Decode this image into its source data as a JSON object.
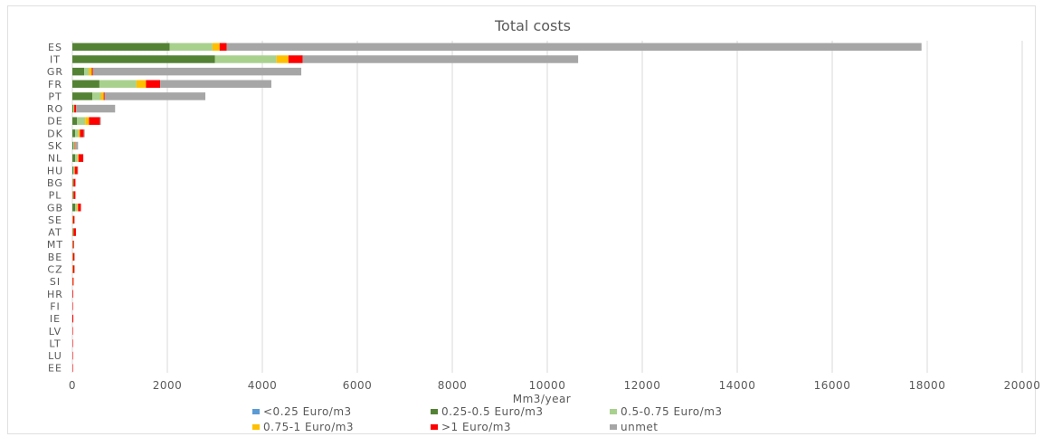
{
  "chart_data": {
    "type": "bar",
    "orientation": "horizontal",
    "stacked": true,
    "title": "Total costs",
    "xlabel": "Mm3/year",
    "ylabel": "",
    "xlim": [
      0,
      20000
    ],
    "xticks": [
      0,
      2000,
      4000,
      6000,
      8000,
      10000,
      12000,
      14000,
      16000,
      18000,
      20000
    ],
    "grid": true,
    "legend_position": "bottom",
    "categories": [
      "ES",
      "IT",
      "GR",
      "FR",
      "PT",
      "RO",
      "DE",
      "DK",
      "SK",
      "NL",
      "HU",
      "BG",
      "PL",
      "GB",
      "SE",
      "AT",
      "MT",
      "BE",
      "CZ",
      "SI",
      "HR",
      "FI",
      "IE",
      "LV",
      "LT",
      "LU",
      "EE"
    ],
    "series": [
      {
        "name": "<0.25 Euro/m3",
        "color": "#5b9bd5",
        "values": [
          0,
          0,
          0,
          0,
          0,
          0,
          0,
          0,
          0,
          0,
          0,
          0,
          0,
          0,
          0,
          0,
          0,
          0,
          0,
          0,
          0,
          0,
          0,
          0,
          0,
          0,
          0
        ]
      },
      {
        "name": "0.25-0.5 Euro/m3",
        "color": "#548235",
        "values": [
          2050,
          3000,
          250,
          570,
          420,
          20,
          100,
          60,
          20,
          60,
          20,
          10,
          10,
          60,
          5,
          10,
          5,
          5,
          5,
          2,
          0,
          0,
          0,
          0,
          0,
          0,
          0
        ]
      },
      {
        "name": "0.5-0.75 Euro/m3",
        "color": "#a9d18e",
        "values": [
          900,
          1300,
          100,
          780,
          180,
          10,
          170,
          70,
          20,
          50,
          20,
          10,
          10,
          40,
          5,
          10,
          5,
          5,
          5,
          2,
          0,
          0,
          0,
          0,
          0,
          0,
          0
        ]
      },
      {
        "name": "0.75-1 Euro/m3",
        "color": "#ffc000",
        "values": [
          150,
          250,
          60,
          200,
          60,
          10,
          80,
          30,
          10,
          20,
          10,
          5,
          5,
          20,
          5,
          5,
          3,
          5,
          5,
          2,
          0,
          0,
          0,
          0,
          0,
          0,
          0
        ]
      },
      {
        "name": ">1 Euro/m3",
        "color": "#ff0000",
        "values": [
          150,
          300,
          20,
          300,
          20,
          40,
          230,
          80,
          10,
          100,
          60,
          40,
          40,
          60,
          30,
          50,
          20,
          30,
          30,
          20,
          15,
          10,
          20,
          10,
          10,
          10,
          10
        ]
      },
      {
        "name": "unmet",
        "color": "#a6a6a6",
        "values": [
          14630,
          5800,
          4390,
          2340,
          2120,
          820,
          20,
          20,
          60,
          0,
          10,
          0,
          0,
          0,
          0,
          0,
          0,
          0,
          0,
          0,
          0,
          0,
          0,
          0,
          0,
          0,
          0
        ]
      }
    ]
  }
}
